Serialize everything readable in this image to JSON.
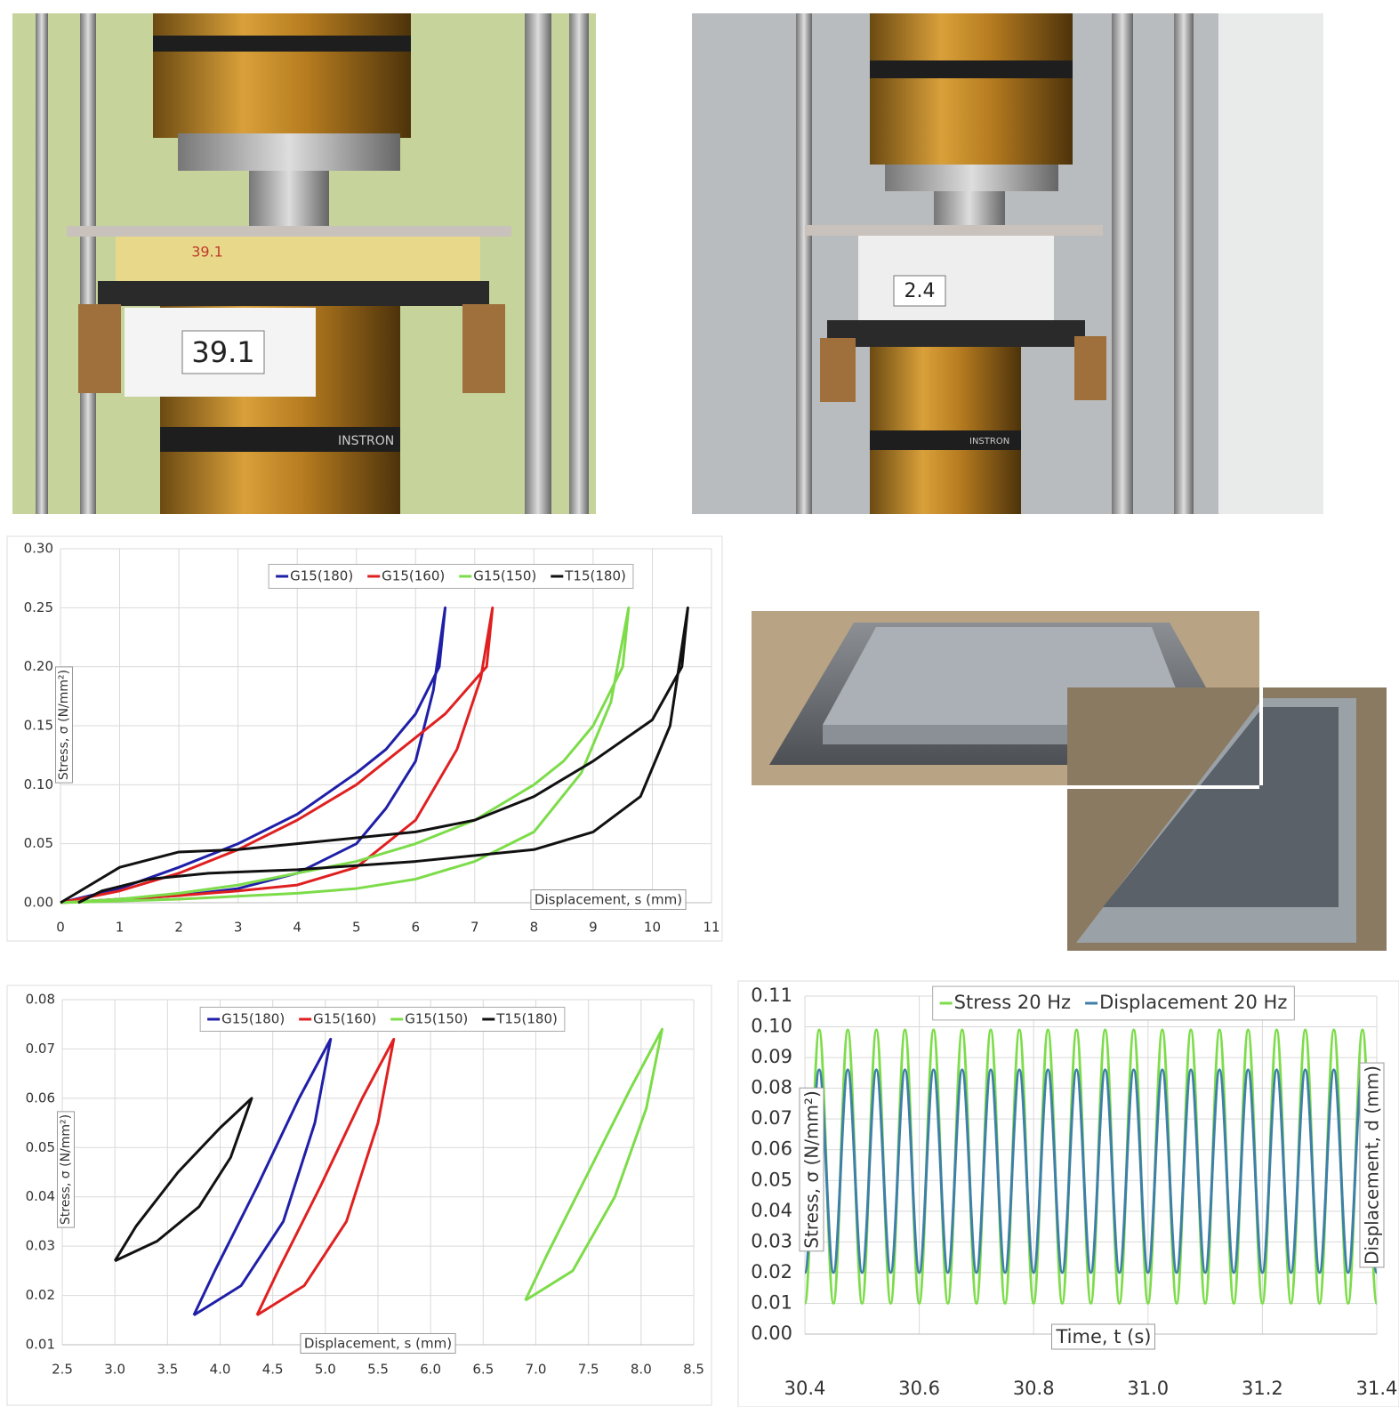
{
  "photos": [
    {
      "label": "39.1",
      "brand": "INSTRON",
      "mark": "39.1"
    },
    {
      "label": "2.4",
      "brand": "INSTRON"
    }
  ],
  "chart_data": [
    {
      "type": "line",
      "y_label": "Stress, σ (N/mm²)",
      "x_label": "Displacement, s (mm)",
      "xlim": [
        0,
        11
      ],
      "xticks": [
        0,
        1,
        2,
        3,
        4,
        5,
        6,
        7,
        8,
        9,
        10,
        11
      ],
      "ylim": [
        0,
        0.3
      ],
      "yticks": [
        {
          "value": 0,
          "label": "0.00"
        },
        {
          "value": 0.05,
          "label": "0.05"
        },
        {
          "value": 0.1,
          "label": "0.10"
        },
        {
          "value": 0.15,
          "label": "0.15"
        },
        {
          "value": 0.2,
          "label": "0.20"
        },
        {
          "value": 0.25,
          "label": "0.25"
        },
        {
          "value": 0.3,
          "label": "0.30"
        }
      ],
      "grid": true,
      "legend": "top",
      "series": [
        {
          "name": "G15(180)",
          "color": "#1f1fa8",
          "x": [
            0,
            1,
            2,
            3,
            4,
            5,
            5.5,
            6,
            6.3,
            6.5,
            6.4,
            6,
            5.5,
            5,
            4,
            3,
            2,
            1,
            0
          ],
          "values": [
            0,
            0.003,
            0.006,
            0.012,
            0.025,
            0.05,
            0.08,
            0.12,
            0.18,
            0.25,
            0.2,
            0.16,
            0.13,
            0.11,
            0.075,
            0.05,
            0.03,
            0.012,
            0
          ]
        },
        {
          "name": "G15(160)",
          "color": "#e02020",
          "x": [
            0,
            1,
            2,
            3,
            4,
            5,
            6,
            6.7,
            7.1,
            7.3,
            7.2,
            6.5,
            6,
            5,
            4,
            3,
            2,
            1,
            0
          ],
          "values": [
            0,
            0.003,
            0.006,
            0.01,
            0.015,
            0.03,
            0.07,
            0.13,
            0.19,
            0.25,
            0.2,
            0.16,
            0.14,
            0.1,
            0.07,
            0.045,
            0.025,
            0.01,
            0
          ]
        },
        {
          "name": "G15(150)",
          "color": "#7ddc4a",
          "x": [
            0,
            2,
            4,
            5,
            6,
            7,
            8,
            8.8,
            9.3,
            9.6,
            9.5,
            9,
            8.5,
            8,
            7,
            6,
            5,
            4,
            3,
            2,
            1,
            0
          ],
          "values": [
            0,
            0.003,
            0.008,
            0.012,
            0.02,
            0.035,
            0.06,
            0.11,
            0.17,
            0.25,
            0.2,
            0.15,
            0.12,
            0.1,
            0.07,
            0.05,
            0.035,
            0.025,
            0.015,
            0.008,
            0.003,
            0
          ]
        },
        {
          "name": "T15(180)",
          "color": "#111111",
          "x": [
            0.3,
            0.7,
            1.5,
            2.5,
            4,
            6,
            8,
            9,
            9.8,
            10.3,
            10.6,
            10.5,
            10,
            9,
            8,
            7,
            6,
            4,
            3,
            2,
            1,
            0.5,
            0
          ],
          "values": [
            0,
            0.01,
            0.02,
            0.025,
            0.028,
            0.035,
            0.045,
            0.06,
            0.09,
            0.15,
            0.25,
            0.2,
            0.155,
            0.12,
            0.09,
            0.07,
            0.06,
            0.05,
            0.045,
            0.043,
            0.03,
            0.015,
            0
          ]
        }
      ]
    },
    {
      "type": "line",
      "y_label": "Stress, σ (N/mm²)",
      "x_label": "Displacement, s (mm)",
      "xlim": [
        2.5,
        8.5
      ],
      "xticks": [
        2.5,
        {
          "value": 3,
          "label": "3.0"
        },
        3.5,
        {
          "value": 4,
          "label": "4.0"
        },
        4.5,
        {
          "value": 5,
          "label": "5.0"
        },
        5.5,
        {
          "value": 6,
          "label": "6.0"
        },
        6.5,
        {
          "value": 7,
          "label": "7.0"
        },
        7.5,
        {
          "value": 8,
          "label": "8.0"
        },
        8.5
      ],
      "ylim": [
        0.01,
        0.08
      ],
      "yticks": [
        0.01,
        0.02,
        0.03,
        0.04,
        0.05,
        0.06,
        0.07,
        0.08
      ],
      "grid": true,
      "legend": "top",
      "series": [
        {
          "name": "G15(180)",
          "color": "#1f1fa8",
          "x": [
            3.75,
            4.2,
            4.6,
            4.9,
            5.05,
            4.75,
            4.35,
            3.95,
            3.75
          ],
          "values": [
            0.016,
            0.022,
            0.035,
            0.055,
            0.072,
            0.06,
            0.042,
            0.025,
            0.016
          ]
        },
        {
          "name": "G15(160)",
          "color": "#e02020",
          "x": [
            4.35,
            4.8,
            5.2,
            5.5,
            5.65,
            5.35,
            4.95,
            4.55,
            4.35
          ],
          "values": [
            0.016,
            0.022,
            0.035,
            0.055,
            0.072,
            0.06,
            0.042,
            0.025,
            0.016
          ]
        },
        {
          "name": "G15(150)",
          "color": "#7ddc4a",
          "x": [
            6.9,
            7.35,
            7.75,
            8.05,
            8.2,
            7.9,
            7.5,
            7.1,
            6.9
          ],
          "values": [
            0.019,
            0.025,
            0.04,
            0.058,
            0.074,
            0.062,
            0.045,
            0.028,
            0.019
          ]
        },
        {
          "name": "T15(180)",
          "color": "#111111",
          "x": [
            3.0,
            3.4,
            3.8,
            4.1,
            4.3,
            4.0,
            3.6,
            3.2,
            3.0
          ],
          "values": [
            0.027,
            0.031,
            0.038,
            0.048,
            0.06,
            0.054,
            0.045,
            0.034,
            0.027
          ]
        }
      ]
    },
    {
      "type": "line",
      "y_label": "Stress, σ (N/mm²)",
      "y2_label": "Displacement, d (mm)",
      "x_label": "Time, t (s)",
      "xlim": [
        30.4,
        31.4
      ],
      "xticks": [
        30.4,
        30.6,
        30.8,
        {
          "value": 31,
          "label": "31.0"
        },
        31.2,
        31.4
      ],
      "ylim": [
        0,
        0.11
      ],
      "yticks": [
        {
          "value": 0,
          "label": "0.00"
        },
        0.01,
        0.02,
        0.03,
        0.04,
        0.05,
        0.06,
        0.07,
        0.08,
        0.09,
        {
          "value": 0.1,
          "label": "0.10"
        },
        0.11
      ],
      "grid": true,
      "legend": "top",
      "x": [
        30.4,
        30.425,
        30.45,
        30.475,
        30.5,
        30.525,
        30.55,
        30.575,
        30.6,
        30.625,
        30.65,
        30.675,
        30.7,
        30.725,
        30.75,
        30.775,
        30.8,
        30.825,
        30.85,
        30.875,
        30.9,
        30.925,
        30.95,
        30.975,
        31.0,
        31.025,
        31.05,
        31.075,
        31.1,
        31.125,
        31.15,
        31.175,
        31.2,
        31.225,
        31.25,
        31.275,
        31.3,
        31.325,
        31.35,
        31.375,
        31.4
      ],
      "series": [
        {
          "name": "Stress 20 Hz",
          "color": "#7ddc4a",
          "values": [
            0.01,
            0.099,
            0.01,
            0.099,
            0.01,
            0.099,
            0.01,
            0.099,
            0.01,
            0.099,
            0.01,
            0.099,
            0.01,
            0.099,
            0.01,
            0.099,
            0.01,
            0.099,
            0.01,
            0.099,
            0.01,
            0.099,
            0.01,
            0.099,
            0.01,
            0.099,
            0.01,
            0.099,
            0.01,
            0.099,
            0.01,
            0.099,
            0.01,
            0.099,
            0.01,
            0.099,
            0.01,
            0.099,
            0.01,
            0.099,
            0.01
          ]
        },
        {
          "name": "Displacement 20 Hz",
          "color": "#3f7fa8",
          "values": [
            0.02,
            0.086,
            0.02,
            0.086,
            0.02,
            0.086,
            0.02,
            0.086,
            0.02,
            0.086,
            0.02,
            0.086,
            0.02,
            0.086,
            0.02,
            0.086,
            0.02,
            0.086,
            0.02,
            0.086,
            0.02,
            0.086,
            0.02,
            0.086,
            0.02,
            0.086,
            0.02,
            0.086,
            0.02,
            0.086,
            0.02,
            0.086,
            0.02,
            0.086,
            0.02,
            0.086,
            0.02,
            0.086,
            0.02,
            0.086,
            0.02
          ]
        }
      ]
    }
  ]
}
